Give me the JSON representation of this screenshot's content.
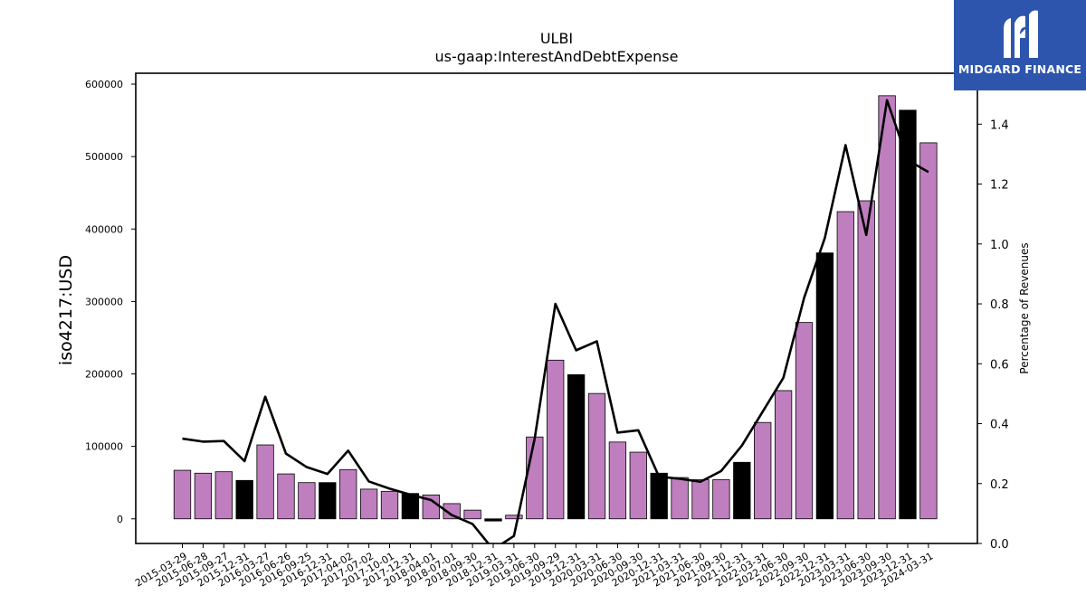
{
  "logo": {
    "brand_name": "MIDGARD FINANCE",
    "icon": "midgard-finance-logo-icon",
    "background_color": "#2d55ae"
  },
  "chart_data": {
    "type": "bar",
    "title": "ULBI",
    "subtitle": "us-gaap:InterestAndDebtExpense",
    "ylabel": "iso4217:USD",
    "y2label": "Percentage of Revenues",
    "ylim": [
      -34000,
      615000
    ],
    "y2lim": [
      0.0,
      1.57
    ],
    "yticks": [
      0,
      100000,
      200000,
      300000,
      400000,
      500000,
      600000
    ],
    "y2ticks": [
      0.0,
      0.2,
      0.4,
      0.6,
      0.8,
      1.0,
      1.2,
      1.4
    ],
    "grid": false,
    "categories": [
      "2015-03-29",
      "2015-06-28",
      "2015-09-27",
      "2015-12-31",
      "2016-03-27",
      "2016-06-26",
      "2016-09-25",
      "2016-12-31",
      "2017-04-02",
      "2017-07-02",
      "2017-10-01",
      "2017-12-31",
      "2018-04-01",
      "2018-07-01",
      "2018-09-30",
      "2018-12-31",
      "2019-03-31",
      "2019-06-30",
      "2019-09-29",
      "2019-12-31",
      "2020-03-31",
      "2020-06-30",
      "2020-09-30",
      "2020-12-31",
      "2021-03-31",
      "2021-06-30",
      "2021-09-30",
      "2021-12-31",
      "2022-03-31",
      "2022-06-30",
      "2022-09-30",
      "2022-12-31",
      "2023-03-31",
      "2023-06-30",
      "2023-09-30",
      "2023-12-31",
      "2024-03-31"
    ],
    "series": [
      {
        "kind": "bar",
        "axis": "left",
        "values": [
          67000,
          63000,
          65000,
          53000,
          102000,
          62000,
          50000,
          50000,
          68000,
          41000,
          38000,
          35000,
          33000,
          21000,
          12000,
          -3000,
          5000,
          113000,
          219000,
          199000,
          173000,
          106000,
          92000,
          63000,
          57000,
          54000,
          54000,
          78000,
          133000,
          177000,
          271000,
          367000,
          424000,
          439000,
          584000,
          564000,
          519000
        ],
        "colors_by_period": {
          "quarter": "#bf7fbf",
          "year_end": "#000000"
        },
        "period_type": [
          "q",
          "q",
          "q",
          "fy",
          "q",
          "q",
          "q",
          "fy",
          "q",
          "q",
          "q",
          "fy",
          "q",
          "q",
          "q",
          "fy",
          "q",
          "q",
          "q",
          "fy",
          "q",
          "q",
          "q",
          "fy",
          "q",
          "q",
          "q",
          "fy",
          "q",
          "q",
          "q",
          "fy",
          "q",
          "q",
          "q",
          "fy",
          "q"
        ]
      },
      {
        "kind": "line",
        "axis": "right",
        "color": "#000000",
        "values": [
          0.35,
          0.34,
          0.342,
          0.275,
          0.49,
          0.3,
          0.255,
          0.232,
          0.31,
          0.207,
          0.183,
          0.163,
          0.145,
          0.095,
          0.065,
          -0.02,
          0.025,
          0.35,
          0.8,
          0.645,
          0.675,
          0.37,
          0.378,
          0.223,
          0.216,
          0.206,
          0.242,
          0.327,
          0.44,
          0.553,
          0.82,
          1.02,
          1.33,
          1.03,
          1.48,
          1.28,
          1.24
        ]
      }
    ]
  }
}
